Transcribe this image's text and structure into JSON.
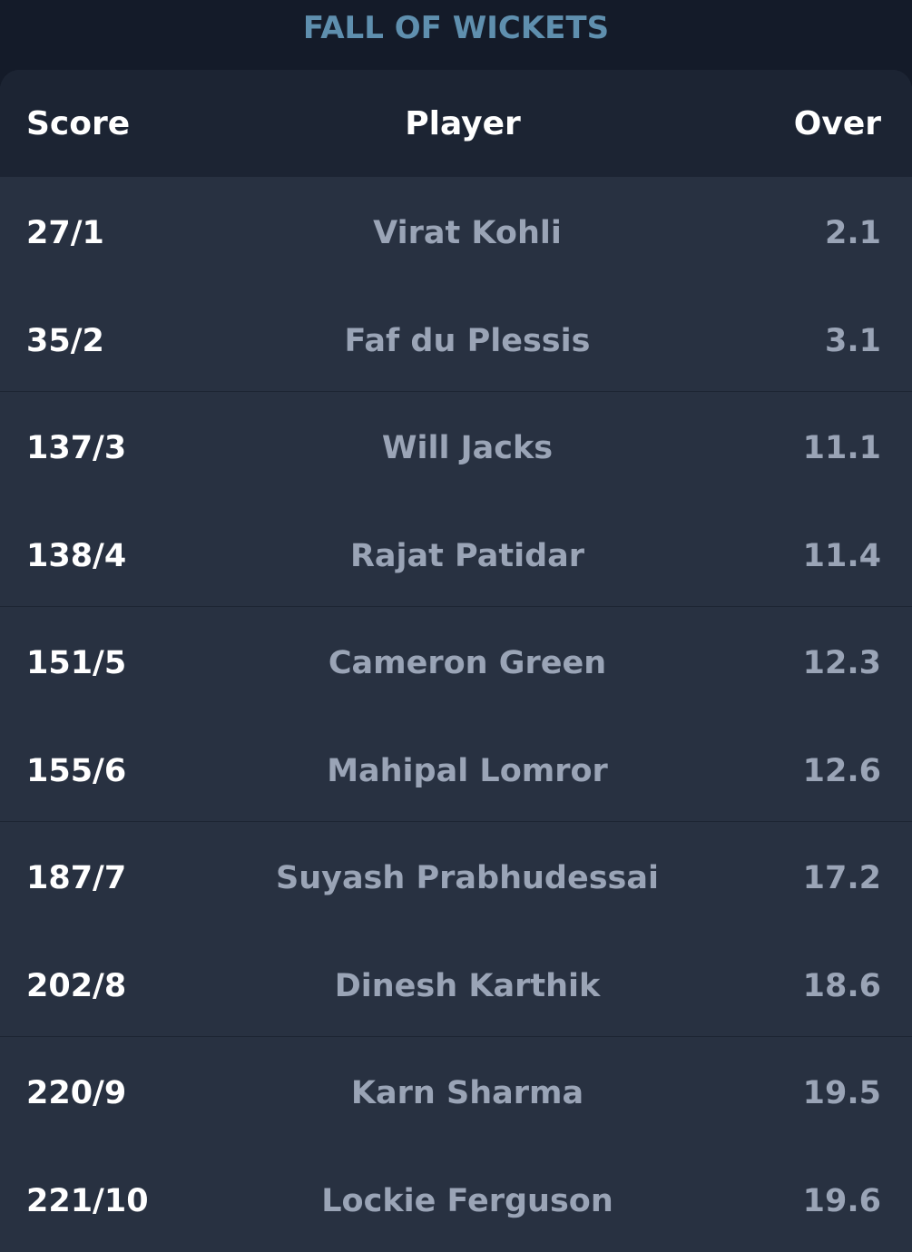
{
  "title": "FALL OF WICKETS",
  "table": {
    "headers": {
      "score": "Score",
      "player": "Player",
      "over": "Over"
    },
    "rows": [
      {
        "score": "27/1",
        "player": "Virat Kohli",
        "over": "2.1"
      },
      {
        "score": "35/2",
        "player": "Faf du Plessis",
        "over": "3.1"
      },
      {
        "score": "137/3",
        "player": "Will Jacks",
        "over": "11.1"
      },
      {
        "score": "138/4",
        "player": "Rajat Patidar",
        "over": "11.4"
      },
      {
        "score": "151/5",
        "player": "Cameron Green",
        "over": "12.3"
      },
      {
        "score": "155/6",
        "player": "Mahipal Lomror",
        "over": "12.6"
      },
      {
        "score": "187/7",
        "player": "Suyash Prabhudessai",
        "over": "17.2"
      },
      {
        "score": "202/8",
        "player": "Dinesh Karthik",
        "over": "18.6"
      },
      {
        "score": "220/9",
        "player": "Karn Sharma",
        "over": "19.5"
      },
      {
        "score": "221/10",
        "player": "Lockie Ferguson",
        "over": "19.6"
      }
    ]
  },
  "colors": {
    "background": "#141b29",
    "card": "#283141",
    "header": "#1c2433",
    "title": "#5f8fae",
    "muted_text": "#9aa4b6"
  }
}
